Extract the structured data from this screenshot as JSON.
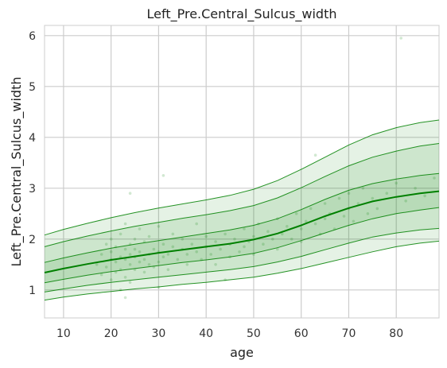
{
  "chart_data": {
    "type": "line",
    "title": "Left_Pre.Central_Sulcus_width",
    "xlabel": "age",
    "ylabel": "Left_Pre.Central_Sulcus_width",
    "xlim": [
      6,
      89
    ],
    "ylim": [
      0.45,
      6.2
    ],
    "xticks": [
      10,
      20,
      30,
      40,
      50,
      60,
      70,
      80
    ],
    "yticks": [
      1,
      2,
      3,
      4,
      5,
      6
    ],
    "grid": true,
    "line_color": "#008000",
    "band_color": "#008000",
    "x": [
      6,
      10,
      15,
      20,
      25,
      30,
      35,
      40,
      45,
      50,
      55,
      60,
      65,
      70,
      75,
      80,
      85,
      89
    ],
    "series": [
      {
        "values": [
          0.8,
          0.86,
          0.92,
          0.97,
          1.02,
          1.06,
          1.11,
          1.15,
          1.2,
          1.25,
          1.33,
          1.42,
          1.53,
          1.64,
          1.75,
          1.85,
          1.92,
          1.96
        ]
      },
      {
        "values": [
          0.96,
          1.02,
          1.09,
          1.15,
          1.2,
          1.25,
          1.3,
          1.35,
          1.4,
          1.46,
          1.55,
          1.66,
          1.79,
          1.92,
          2.04,
          2.12,
          2.18,
          2.21
        ]
      },
      {
        "values": [
          1.14,
          1.21,
          1.29,
          1.36,
          1.42,
          1.48,
          1.54,
          1.59,
          1.65,
          1.72,
          1.83,
          1.97,
          2.12,
          2.27,
          2.4,
          2.5,
          2.57,
          2.62
        ]
      },
      {
        "values": [
          1.34,
          1.42,
          1.51,
          1.59,
          1.66,
          1.73,
          1.79,
          1.85,
          1.91,
          1.99,
          2.11,
          2.27,
          2.45,
          2.61,
          2.74,
          2.83,
          2.9,
          2.94
        ]
      },
      {
        "values": [
          1.54,
          1.63,
          1.73,
          1.82,
          1.9,
          1.97,
          2.04,
          2.11,
          2.18,
          2.27,
          2.4,
          2.58,
          2.78,
          2.96,
          3.09,
          3.18,
          3.25,
          3.29
        ]
      },
      {
        "values": [
          1.85,
          1.95,
          2.06,
          2.16,
          2.25,
          2.33,
          2.41,
          2.48,
          2.56,
          2.66,
          2.81,
          3.01,
          3.23,
          3.44,
          3.61,
          3.73,
          3.83,
          3.88
        ]
      },
      {
        "values": [
          2.08,
          2.19,
          2.31,
          2.42,
          2.52,
          2.61,
          2.69,
          2.77,
          2.86,
          2.98,
          3.15,
          3.37,
          3.61,
          3.85,
          4.05,
          4.19,
          4.29,
          4.34
        ]
      }
    ],
    "scatter": {
      "color": "#008000",
      "points": [
        [
          17,
          1.5
        ],
        [
          18,
          1.7
        ],
        [
          18,
          1.3
        ],
        [
          19,
          1.9
        ],
        [
          19,
          1.45
        ],
        [
          20,
          1.6
        ],
        [
          20,
          2.0
        ],
        [
          20,
          1.2
        ],
        [
          20,
          1.75
        ],
        [
          21,
          1.55
        ],
        [
          21,
          1.35
        ],
        [
          21,
          1.85
        ],
        [
          22,
          1.65
        ],
        [
          22,
          2.1
        ],
        [
          22,
          1.4
        ],
        [
          22,
          1.0
        ],
        [
          23,
          1.6
        ],
        [
          23,
          1.8
        ],
        [
          23,
          1.25
        ],
        [
          23,
          2.3
        ],
        [
          24,
          1.7
        ],
        [
          24,
          1.5
        ],
        [
          24,
          1.9
        ],
        [
          24,
          1.15
        ],
        [
          25,
          1.65
        ],
        [
          25,
          2.0
        ],
        [
          25,
          1.4
        ],
        [
          25,
          1.8
        ],
        [
          26,
          1.55
        ],
        [
          26,
          1.75
        ],
        [
          26,
          2.2
        ],
        [
          27,
          1.6
        ],
        [
          27,
          1.35
        ],
        [
          27,
          1.95
        ],
        [
          28,
          1.7
        ],
        [
          28,
          1.5
        ],
        [
          28,
          2.05
        ],
        [
          29,
          1.8
        ],
        [
          29,
          1.45
        ],
        [
          30,
          1.75
        ],
        [
          30,
          1.55
        ],
        [
          30,
          2.25
        ],
        [
          31,
          1.65
        ],
        [
          31,
          1.9
        ],
        [
          32,
          1.7
        ],
        [
          32,
          1.4
        ],
        [
          33,
          1.85
        ],
        [
          33,
          2.1
        ],
        [
          34,
          1.6
        ],
        [
          35,
          1.8
        ],
        [
          35,
          2.0
        ],
        [
          36,
          1.7
        ],
        [
          36,
          1.5
        ],
        [
          37,
          1.9
        ],
        [
          38,
          1.75
        ],
        [
          38,
          2.3
        ],
        [
          39,
          1.6
        ],
        [
          40,
          1.85
        ],
        [
          40,
          2.05
        ],
        [
          41,
          1.7
        ],
        [
          42,
          1.95
        ],
        [
          42,
          1.5
        ],
        [
          43,
          1.8
        ],
        [
          44,
          2.1
        ],
        [
          45,
          1.9
        ],
        [
          45,
          1.65
        ],
        [
          46,
          2.0
        ],
        [
          47,
          1.75
        ],
        [
          48,
          2.2
        ],
        [
          48,
          1.85
        ],
        [
          49,
          1.95
        ],
        [
          50,
          2.05
        ],
        [
          50,
          1.7
        ],
        [
          51,
          2.3
        ],
        [
          52,
          1.9
        ],
        [
          53,
          2.15
        ],
        [
          54,
          2.0
        ],
        [
          55,
          2.4
        ],
        [
          55,
          1.8
        ],
        [
          56,
          2.1
        ],
        [
          57,
          2.25
        ],
        [
          58,
          2.0
        ],
        [
          59,
          2.5
        ],
        [
          60,
          2.2
        ],
        [
          60,
          1.95
        ],
        [
          61,
          2.35
        ],
        [
          62,
          2.6
        ],
        [
          63,
          2.3
        ],
        [
          64,
          2.1
        ],
        [
          65,
          2.7
        ],
        [
          65,
          2.4
        ],
        [
          66,
          2.5
        ],
        [
          67,
          2.2
        ],
        [
          68,
          2.8
        ],
        [
          69,
          2.45
        ],
        [
          70,
          2.6
        ],
        [
          70,
          2.9
        ],
        [
          71,
          2.35
        ],
        [
          72,
          2.7
        ],
        [
          73,
          3.0
        ],
        [
          74,
          2.5
        ],
        [
          75,
          2.8
        ],
        [
          76,
          2.6
        ],
        [
          78,
          2.9
        ],
        [
          80,
          3.1
        ],
        [
          82,
          2.75
        ],
        [
          84,
          3.0
        ],
        [
          86,
          2.85
        ],
        [
          88,
          3.2
        ],
        [
          24,
          2.9
        ],
        [
          31,
          3.25
        ],
        [
          63,
          3.65
        ],
        [
          81,
          5.95
        ],
        [
          23,
          0.85
        ],
        [
          30,
          1.05
        ],
        [
          44,
          1.2
        ]
      ]
    }
  }
}
